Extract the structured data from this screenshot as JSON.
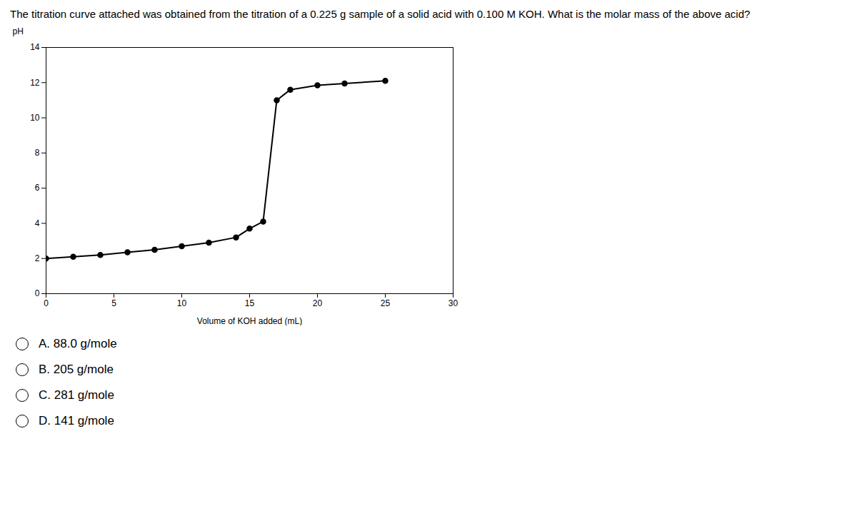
{
  "chart_data": {
    "type": "line",
    "title": "The titration curve attached was obtained from the titration of a 0.225 g sample of a solid acid with 0.100 M KOH. What is the molar mass of the above acid?",
    "x_label": "Volume of KOH added (mL)",
    "y_label": "pH",
    "x": [
      0,
      2,
      4,
      6,
      8,
      10,
      12,
      14,
      15,
      16,
      17,
      18,
      20,
      22,
      25
    ],
    "values": [
      2.0,
      2.1,
      2.2,
      2.35,
      2.5,
      2.7,
      2.9,
      3.2,
      3.7,
      4.1,
      11.0,
      11.6,
      11.85,
      11.95,
      12.1
    ],
    "color": "#000000",
    "marker": "circle",
    "xlim": [
      0,
      30
    ],
    "ylim": [
      0,
      14
    ],
    "xticks": [
      0,
      5,
      10,
      15,
      20,
      25,
      30
    ],
    "yticks": [
      0,
      2,
      4,
      6,
      8,
      10,
      12,
      14
    ],
    "grid": false,
    "annotations": [
      "A. 88.0 g/mole",
      "B. 205 g/mole",
      "C. 281 g/mole",
      "D. 141 g/mole"
    ]
  }
}
